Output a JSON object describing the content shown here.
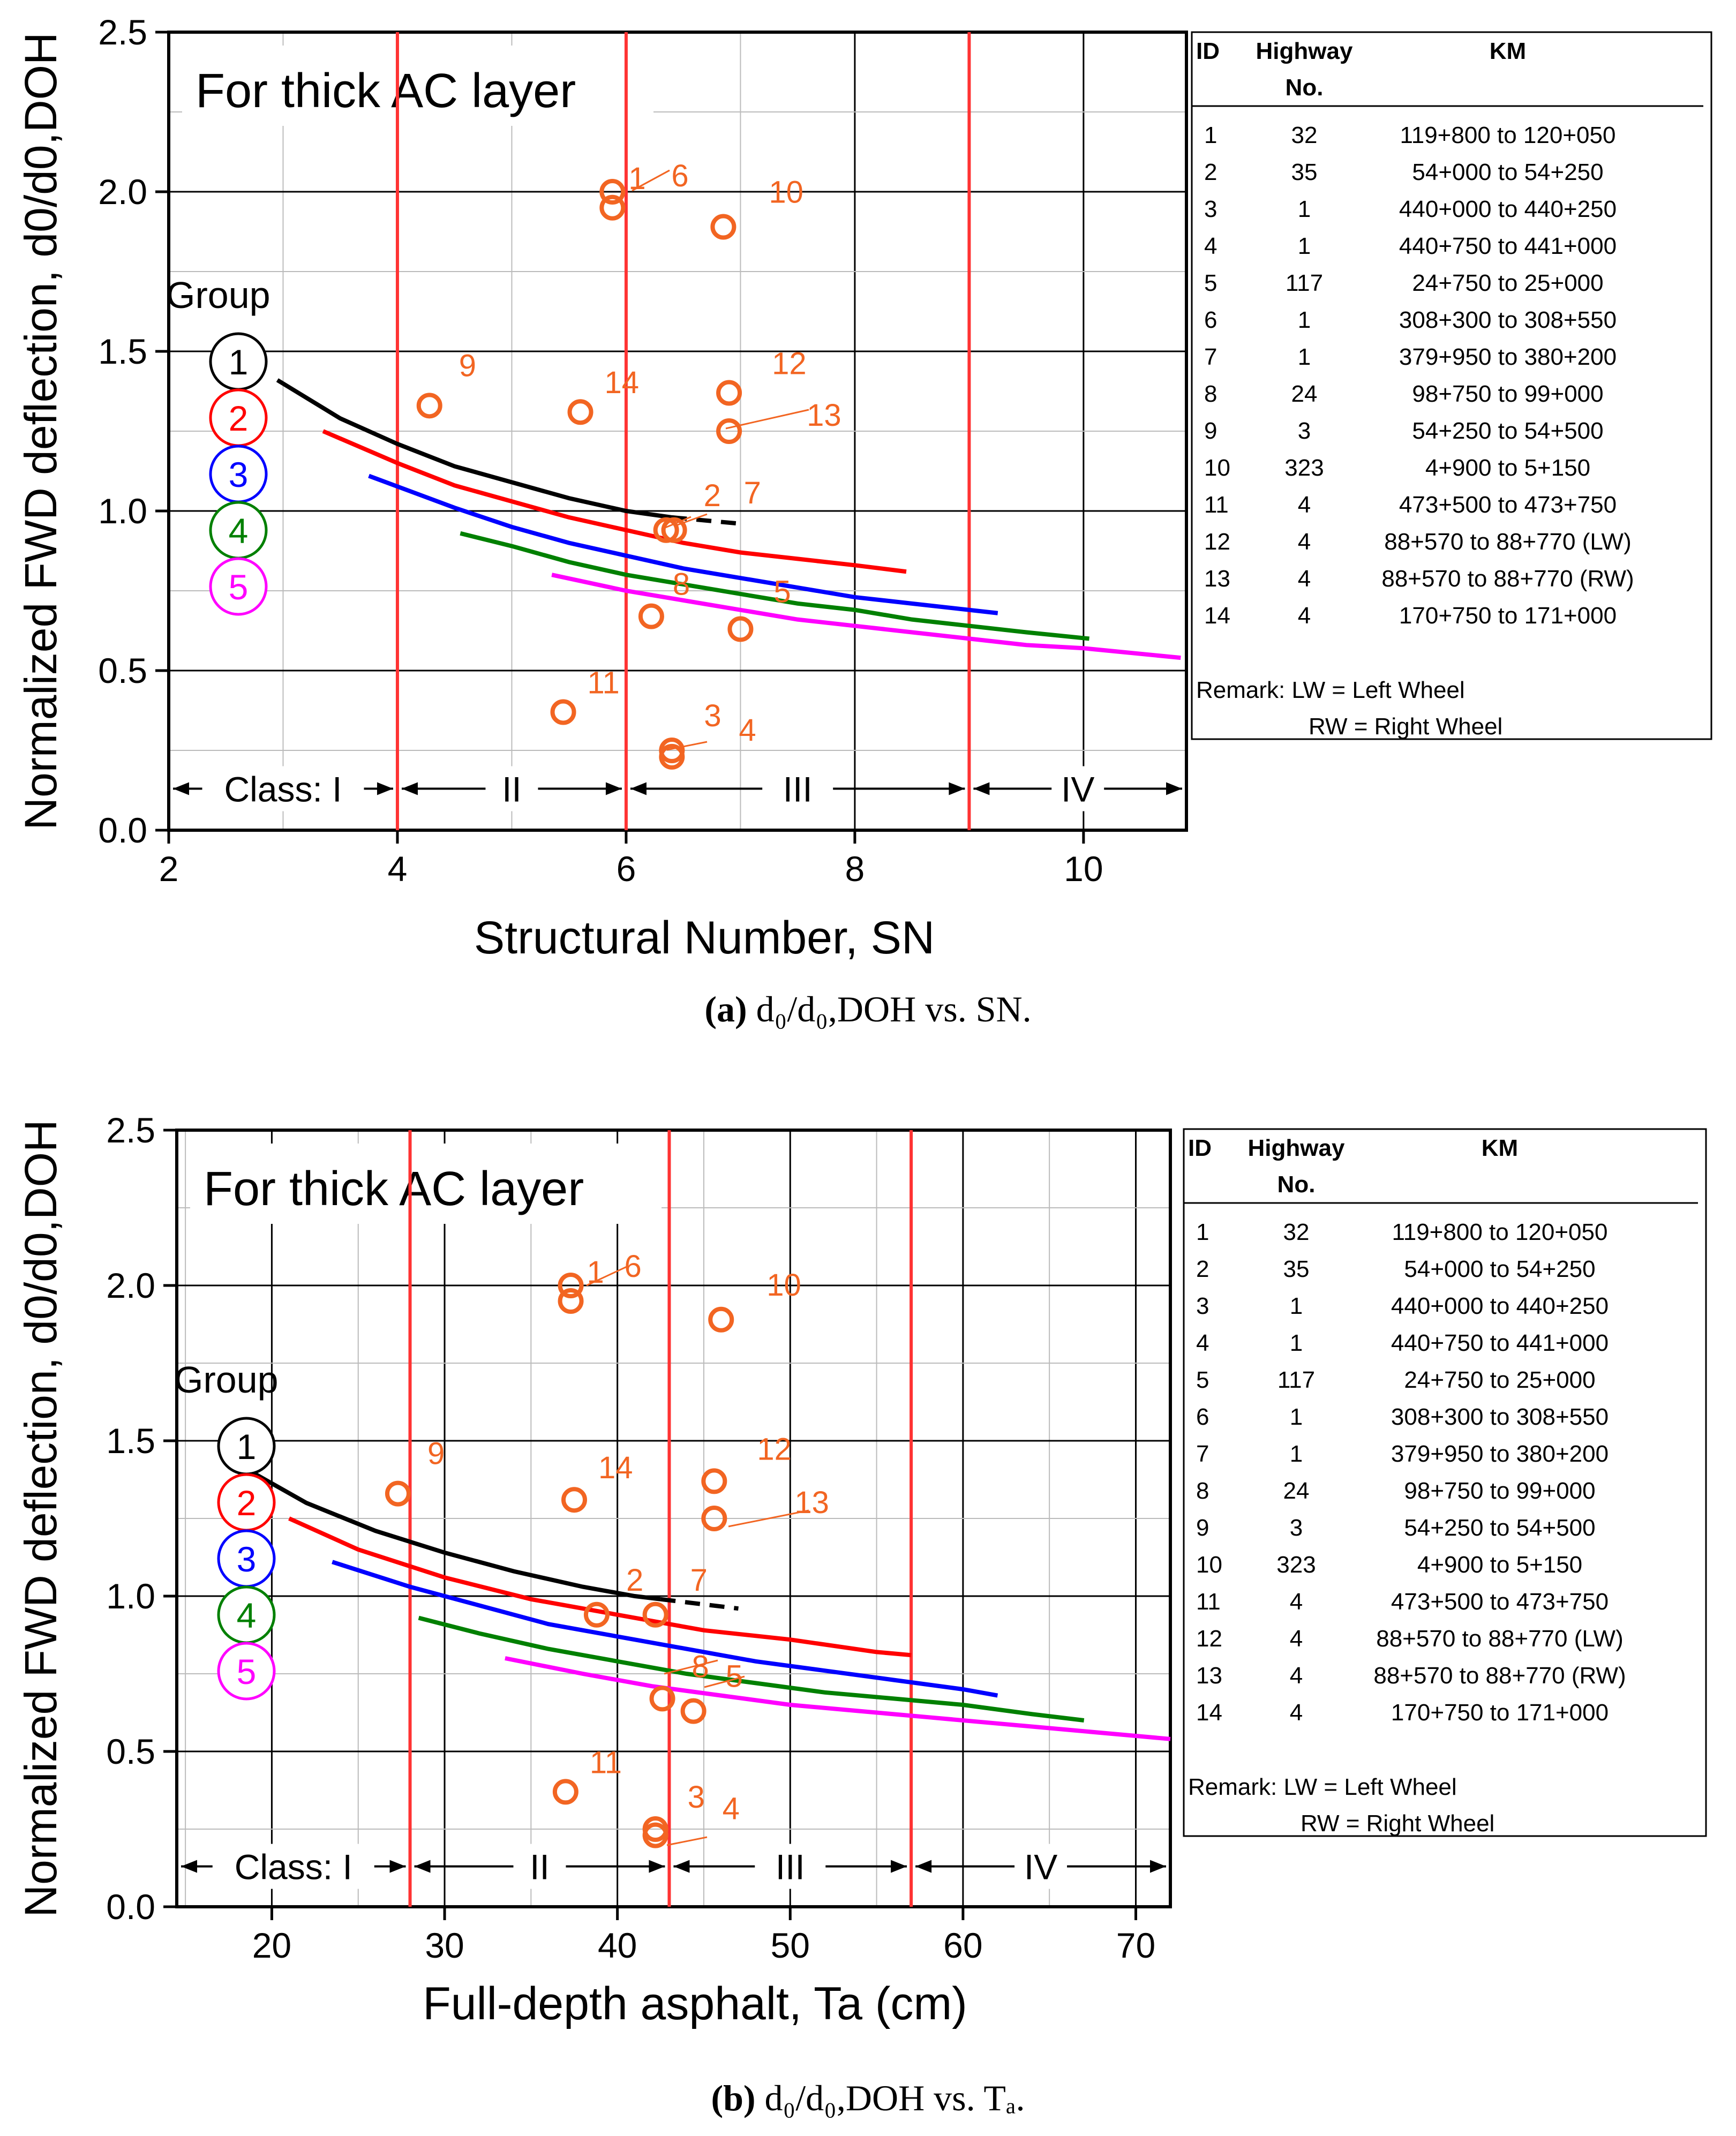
{
  "chart_data": [
    {
      "type": "scatter",
      "panel": "a",
      "title": "For thick AC layer",
      "xlabel": "Structural Number, SN",
      "ylabel": "Normalized FWD deflection, d0/d0,DOH",
      "xlim": [
        2,
        10.9
      ],
      "ylim": [
        0,
        2.5
      ],
      "xticks": [
        2,
        4,
        6,
        8,
        10
      ],
      "yticks": [
        "0.0",
        "0.5",
        "1.0",
        "1.5",
        "2.0",
        "2.5"
      ],
      "grid": true,
      "class_boundaries": [
        4,
        6,
        9
      ],
      "classes": [
        {
          "label": "Class: I",
          "from": 2,
          "to": 4
        },
        {
          "label": "II",
          "from": 4,
          "to": 6
        },
        {
          "label": "III",
          "from": 6,
          "to": 9
        },
        {
          "label": "IV",
          "from": 9,
          "to": 10.9
        }
      ],
      "group_title": "Group",
      "groups": [
        {
          "name": "1",
          "color": "#000000",
          "x": [
            2.95,
            3.5,
            4,
            4.5,
            5,
            5.5,
            6,
            6.4
          ],
          "y": [
            1.41,
            1.29,
            1.21,
            1.14,
            1.09,
            1.04,
            1.0,
            0.98
          ],
          "dash_x": [
            6.4,
            7.0
          ],
          "dash_y": [
            0.98,
            0.96
          ]
        },
        {
          "name": "2",
          "color": "#ff0000",
          "x": [
            3.35,
            4,
            4.5,
            5,
            5.5,
            6,
            6.5,
            7,
            7.5,
            8,
            8.45
          ],
          "y": [
            1.25,
            1.15,
            1.08,
            1.03,
            0.98,
            0.94,
            0.9,
            0.87,
            0.85,
            0.83,
            0.81
          ]
        },
        {
          "name": "3",
          "color": "#0000ff",
          "x": [
            3.75,
            4.5,
            5,
            5.5,
            6,
            6.5,
            7,
            7.5,
            8,
            8.5,
            9.25
          ],
          "y": [
            1.11,
            1.01,
            0.95,
            0.9,
            0.86,
            0.82,
            0.79,
            0.76,
            0.73,
            0.71,
            0.68
          ]
        },
        {
          "name": "4",
          "color": "#008000",
          "x": [
            4.55,
            5,
            5.5,
            6,
            6.5,
            7,
            7.5,
            8,
            8.5,
            9,
            9.5,
            10.05
          ],
          "y": [
            0.93,
            0.89,
            0.84,
            0.8,
            0.77,
            0.74,
            0.71,
            0.69,
            0.66,
            0.64,
            0.62,
            0.6
          ]
        },
        {
          "name": "5",
          "color": "#ff00ff",
          "x": [
            5.35,
            6,
            6.5,
            7,
            7.5,
            8,
            8.5,
            9,
            9.5,
            10,
            10.85
          ],
          "y": [
            0.8,
            0.75,
            0.72,
            0.69,
            0.66,
            0.64,
            0.62,
            0.6,
            0.58,
            0.57,
            0.54
          ]
        }
      ],
      "points": [
        {
          "id": "1",
          "x": 5.88,
          "y": 2.0
        },
        {
          "id": "6",
          "x": 5.88,
          "y": 1.95
        },
        {
          "id": "10",
          "x": 6.85,
          "y": 1.89
        },
        {
          "id": "9",
          "x": 4.28,
          "y": 1.33
        },
        {
          "id": "14",
          "x": 5.6,
          "y": 1.31
        },
        {
          "id": "12",
          "x": 6.9,
          "y": 1.37
        },
        {
          "id": "13",
          "x": 6.9,
          "y": 1.25
        },
        {
          "id": "2",
          "x": 6.35,
          "y": 0.94
        },
        {
          "id": "7",
          "x": 6.42,
          "y": 0.94
        },
        {
          "id": "8",
          "x": 6.22,
          "y": 0.67
        },
        {
          "id": "5",
          "x": 7.0,
          "y": 0.63
        },
        {
          "id": "11",
          "x": 5.45,
          "y": 0.37
        },
        {
          "id": "3",
          "x": 6.4,
          "y": 0.25
        },
        {
          "id": "4",
          "x": 6.4,
          "y": 0.23
        }
      ],
      "point_color": "#f26522"
    },
    {
      "type": "scatter",
      "panel": "b",
      "title": "For thick AC layer",
      "xlabel": "Full-depth asphalt, Ta (cm)",
      "ylabel": "Normalized FWD deflection, d0/d0,DOH",
      "xlim": [
        14.5,
        72
      ],
      "ylim": [
        0,
        2.5
      ],
      "xticks": [
        20,
        30,
        40,
        50,
        60,
        70
      ],
      "yticks": [
        "0.0",
        "0.5",
        "1.0",
        "1.5",
        "2.0",
        "2.5"
      ],
      "grid": true,
      "class_boundaries": [
        28,
        43,
        57
      ],
      "classes": [
        {
          "label": "Class: I",
          "from": 14.5,
          "to": 28
        },
        {
          "label": "II",
          "from": 28,
          "to": 43
        },
        {
          "label": "III",
          "from": 43,
          "to": 57
        },
        {
          "label": "IV",
          "from": 57,
          "to": 72
        }
      ],
      "group_title": "Group",
      "groups": [
        {
          "name": "1",
          "color": "#000000",
          "x": [
            18.5,
            22,
            26,
            30,
            34,
            38,
            41,
            42.5
          ],
          "y": [
            1.41,
            1.3,
            1.21,
            1.14,
            1.08,
            1.03,
            1.0,
            0.99
          ],
          "dash_x": [
            42.5,
            47
          ],
          "dash_y": [
            0.99,
            0.96
          ]
        },
        {
          "name": "2",
          "color": "#ff0000",
          "x": [
            21,
            25,
            30,
            35,
            40,
            45,
            50,
            55,
            57
          ],
          "y": [
            1.25,
            1.15,
            1.06,
            0.99,
            0.94,
            0.89,
            0.86,
            0.82,
            0.81
          ]
        },
        {
          "name": "3",
          "color": "#0000ff",
          "x": [
            23.5,
            28,
            32,
            36,
            40,
            44,
            48,
            52,
            56,
            60,
            62
          ],
          "y": [
            1.11,
            1.03,
            0.97,
            0.91,
            0.87,
            0.83,
            0.79,
            0.76,
            0.73,
            0.7,
            0.68
          ]
        },
        {
          "name": "4",
          "color": "#008000",
          "x": [
            28.5,
            32,
            36,
            40,
            44,
            48,
            52,
            56,
            60,
            64,
            67
          ],
          "y": [
            0.93,
            0.88,
            0.83,
            0.79,
            0.75,
            0.72,
            0.69,
            0.67,
            0.65,
            0.62,
            0.6
          ]
        },
        {
          "name": "5",
          "color": "#ff00ff",
          "x": [
            33.5,
            38,
            42,
            46,
            50,
            54,
            58,
            62,
            66,
            70,
            72
          ],
          "y": [
            0.8,
            0.75,
            0.71,
            0.68,
            0.65,
            0.63,
            0.61,
            0.59,
            0.57,
            0.55,
            0.54
          ]
        }
      ],
      "points": [
        {
          "id": "1",
          "x": 37.3,
          "y": 2.0
        },
        {
          "id": "6",
          "x": 37.3,
          "y": 1.95
        },
        {
          "id": "10",
          "x": 46.0,
          "y": 1.89
        },
        {
          "id": "9",
          "x": 27.3,
          "y": 1.33
        },
        {
          "id": "14",
          "x": 37.5,
          "y": 1.31
        },
        {
          "id": "12",
          "x": 45.6,
          "y": 1.37
        },
        {
          "id": "13",
          "x": 45.6,
          "y": 1.25
        },
        {
          "id": "2",
          "x": 38.8,
          "y": 0.94
        },
        {
          "id": "7",
          "x": 42.2,
          "y": 0.94
        },
        {
          "id": "8",
          "x": 42.6,
          "y": 0.67
        },
        {
          "id": "5",
          "x": 44.4,
          "y": 0.63
        },
        {
          "id": "11",
          "x": 37.0,
          "y": 0.37
        },
        {
          "id": "3",
          "x": 42.2,
          "y": 0.25
        },
        {
          "id": "4",
          "x": 42.2,
          "y": 0.23
        }
      ],
      "point_color": "#f26522"
    }
  ],
  "table": {
    "headers": [
      "ID",
      "Highway",
      "KM"
    ],
    "header_sub": "No.",
    "rows": [
      [
        "1",
        "32",
        "119+800 to 120+050"
      ],
      [
        "2",
        "35",
        "54+000 to 54+250"
      ],
      [
        "3",
        "1",
        "440+000 to 440+250"
      ],
      [
        "4",
        "1",
        "440+750 to 441+000"
      ],
      [
        "5",
        "117",
        "24+750 to 25+000"
      ],
      [
        "6",
        "1",
        "308+300 to 308+550"
      ],
      [
        "7",
        "1",
        "379+950 to 380+200"
      ],
      [
        "8",
        "24",
        "98+750 to 99+000"
      ],
      [
        "9",
        "3",
        "54+250 to 54+500"
      ],
      [
        "10",
        "323",
        "4+900 to 5+150"
      ],
      [
        "11",
        "4",
        "473+500 to 473+750"
      ],
      [
        "12",
        "4",
        "88+570 to 88+770 (LW)"
      ],
      [
        "13",
        "4",
        "88+570 to 88+770 (RW)"
      ],
      [
        "14",
        "4",
        "170+750 to 171+000"
      ]
    ],
    "remark_1": "Remark: LW = Left Wheel",
    "remark_2": "RW = Right Wheel"
  },
  "captions": {
    "a_letter": "(a)",
    "a_text": " d₀/d₀,DOH vs. SN.",
    "b_letter": "(b)",
    "b_text": " d₀/d₀,DOH vs. Tₐ."
  }
}
